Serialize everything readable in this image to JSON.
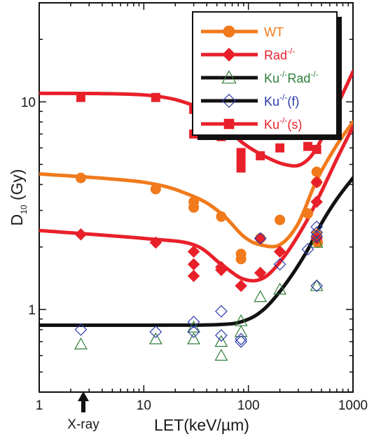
{
  "chart_data": {
    "type": "scatter",
    "xlabel": "LET(keV/µm)",
    "ylabel_main": "D",
    "ylabel_sub": "10",
    "ylabel_rest": " (Gy)",
    "x_scale": "log",
    "y_scale": "log",
    "xlim": [
      1,
      1000
    ],
    "ylim": [
      0.4,
      30
    ],
    "x_ticks": [
      {
        "value": 1,
        "label": "1"
      },
      {
        "value": 10,
        "label": "10"
      },
      {
        "value": 100,
        "label": "100"
      },
      {
        "value": 1000,
        "label": "1000"
      }
    ],
    "y_ticks": [
      {
        "value": 1,
        "label": "1"
      },
      {
        "value": 10,
        "label": "10"
      }
    ],
    "annotation": {
      "text": "X-ray",
      "x": 2.5
    },
    "legend_position": "top-right",
    "series": [
      {
        "name": "WT",
        "name_sup": "",
        "name_tail": "",
        "color": "#f07a1c",
        "text_color": "#f07a1c",
        "marker": "circle",
        "filled": true,
        "points": [
          [
            2.5,
            4.3
          ],
          [
            13,
            3.8
          ],
          [
            30,
            3.3
          ],
          [
            30,
            3.1
          ],
          [
            55,
            2.8
          ],
          [
            85,
            1.85
          ],
          [
            85,
            1.75
          ],
          [
            130,
            2.2
          ],
          [
            200,
            2.7
          ],
          [
            370,
            2.9
          ],
          [
            450,
            4.6
          ],
          [
            450,
            4.1
          ],
          [
            450,
            2.3
          ],
          [
            460,
            2.1
          ]
        ],
        "curve": [
          [
            1,
            4.5
          ],
          [
            10,
            4.1
          ],
          [
            30,
            3.5
          ],
          [
            55,
            2.9
          ],
          [
            90,
            2.25
          ],
          [
            130,
            2.05
          ],
          [
            200,
            2.05
          ],
          [
            300,
            2.6
          ],
          [
            450,
            4.2
          ],
          [
            700,
            6.2
          ],
          [
            1000,
            8.0
          ]
        ]
      },
      {
        "name": "Rad",
        "name_sup": "-/-",
        "name_tail": "",
        "color": "#e8202a",
        "text_color": "#e8202a",
        "marker": "diamond",
        "filled": true,
        "points": [
          [
            2.5,
            2.3
          ],
          [
            13,
            2.1
          ],
          [
            30,
            1.9
          ],
          [
            30,
            1.65
          ],
          [
            30,
            1.45
          ],
          [
            55,
            1.6
          ],
          [
            55,
            1.55
          ],
          [
            85,
            1.3
          ],
          [
            130,
            1.5
          ],
          [
            130,
            2.2
          ],
          [
            200,
            1.9
          ],
          [
            450,
            4.1
          ],
          [
            450,
            3.3
          ],
          [
            450,
            2.2
          ]
        ],
        "curve": [
          [
            1,
            2.4
          ],
          [
            10,
            2.2
          ],
          [
            30,
            2.05
          ],
          [
            55,
            1.65
          ],
          [
            90,
            1.4
          ],
          [
            140,
            1.42
          ],
          [
            220,
            1.8
          ],
          [
            350,
            2.6
          ],
          [
            500,
            3.7
          ],
          [
            700,
            5.3
          ],
          [
            1000,
            7.6
          ]
        ]
      },
      {
        "name": "Ku",
        "name_sup": "-/-",
        "name_tail": "Rad",
        "name_sup2": "-/-",
        "color": "#2e7d3a",
        "text_color": "#2e7d3a",
        "marker": "triangle",
        "filled": false,
        "points": [
          [
            2.5,
            0.68
          ],
          [
            13,
            0.72
          ],
          [
            30,
            0.72
          ],
          [
            30,
            0.82
          ],
          [
            55,
            0.6
          ],
          [
            55,
            0.7
          ],
          [
            85,
            0.78
          ],
          [
            85,
            0.88
          ],
          [
            130,
            1.15
          ],
          [
            200,
            1.25
          ],
          [
            450,
            1.3
          ],
          [
            450,
            2.1
          ]
        ],
        "curve": [
          [
            1,
            0.84
          ],
          [
            10,
            0.84
          ],
          [
            50,
            0.845
          ],
          [
            90,
            0.88
          ],
          [
            140,
            1.0
          ],
          [
            220,
            1.3
          ],
          [
            350,
            1.85
          ],
          [
            500,
            2.6
          ],
          [
            700,
            3.4
          ],
          [
            1000,
            4.3
          ]
        ]
      },
      {
        "name": "Ku",
        "name_sup": "-/-",
        "name_tail": "(f)",
        "color": "#2c3aa8",
        "text_color": "#2c3aa8",
        "marker": "diamond",
        "filled": false,
        "points": [
          [
            2.5,
            0.8
          ],
          [
            13,
            0.78
          ],
          [
            30,
            0.78
          ],
          [
            30,
            0.87
          ],
          [
            55,
            0.98
          ],
          [
            55,
            0.75
          ],
          [
            85,
            0.7
          ],
          [
            85,
            0.72
          ],
          [
            130,
            2.2
          ],
          [
            200,
            1.65
          ],
          [
            370,
            1.95
          ],
          [
            450,
            1.3
          ],
          [
            450,
            2.25
          ],
          [
            450,
            2.35
          ],
          [
            450,
            2.5
          ]
        ]
      },
      {
        "name": "Ku",
        "name_sup": "-/-",
        "name_tail": "(s)",
        "color": "#e8202a",
        "text_color": "#e8202a",
        "marker": "square",
        "filled": true,
        "points": [
          [
            2.5,
            10.5
          ],
          [
            13,
            10.5
          ],
          [
            30,
            9.2
          ],
          [
            30,
            7.0
          ],
          [
            55,
            8.8
          ],
          [
            55,
            6.8
          ],
          [
            85,
            5.7
          ],
          [
            85,
            5.2
          ],
          [
            85,
            4.8
          ],
          [
            130,
            5.5
          ],
          [
            200,
            6.0
          ],
          [
            370,
            6.1
          ],
          [
            450,
            5.9
          ],
          [
            450,
            7.1
          ]
        ],
        "curve": [
          [
            1,
            11
          ],
          [
            10,
            10.8
          ],
          [
            30,
            9.6
          ],
          [
            55,
            7.8
          ],
          [
            90,
            6.3
          ],
          [
            140,
            5.5
          ],
          [
            220,
            5.0
          ],
          [
            320,
            5.0
          ],
          [
            450,
            6.0
          ],
          [
            700,
            9.5
          ],
          [
            1000,
            14
          ]
        ]
      }
    ]
  }
}
